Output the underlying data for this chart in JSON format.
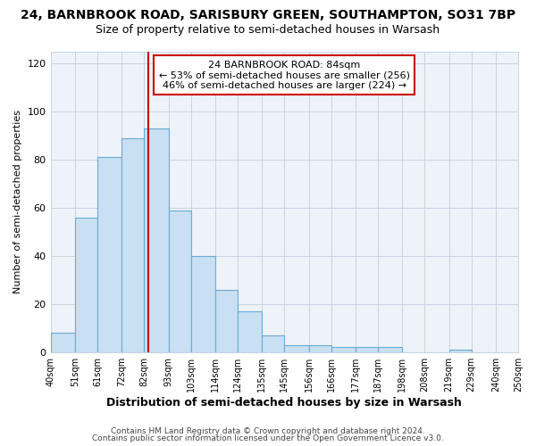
{
  "title1": "24, BARNBROOK ROAD, SARISBURY GREEN, SOUTHAMPTON, SO31 7BP",
  "title2": "Size of property relative to semi-detached houses in Warsash",
  "xlabel": "Distribution of semi-detached houses by size in Warsash",
  "ylabel": "Number of semi-detached properties",
  "bin_labels": [
    "40sqm",
    "51sqm",
    "61sqm",
    "72sqm",
    "82sqm",
    "93sqm",
    "103sqm",
    "114sqm",
    "124sqm",
    "135sqm",
    "145sqm",
    "156sqm",
    "166sqm",
    "177sqm",
    "187sqm",
    "198sqm",
    "208sqm",
    "219sqm",
    "229sqm",
    "240sqm",
    "250sqm"
  ],
  "bin_edges": [
    40,
    51,
    61,
    72,
    82,
    93,
    103,
    114,
    124,
    135,
    145,
    156,
    166,
    177,
    187,
    198,
    208,
    219,
    229,
    240,
    250
  ],
  "counts": [
    8,
    56,
    81,
    89,
    93,
    59,
    40,
    26,
    17,
    7,
    3,
    3,
    2,
    2,
    2,
    0,
    0,
    1,
    0,
    0
  ],
  "property_value": 84,
  "annotation_title": "24 BARNBROOK ROAD: 84sqm",
  "annotation_line1": "← 53% of semi-detached houses are smaller (256)",
  "annotation_line2": "46% of semi-detached houses are larger (224) →",
  "bar_color": "#c9dff2",
  "bar_edge_color": "#6aaad4",
  "vline_color": "#cc0000",
  "annotation_box_edge_color": "#cc0000",
  "plot_bg_color": "#eef3f9",
  "ylim": [
    0,
    125
  ],
  "yticks": [
    0,
    20,
    40,
    60,
    80,
    100,
    120
  ],
  "grid_color": "#c8d4e4",
  "footer1": "Contains HM Land Registry data © Crown copyright and database right 2024.",
  "footer2": "Contains public sector information licensed under the Open Government Licence v3.0.",
  "title1_fontsize": 10,
  "title2_fontsize": 9,
  "xlabel_fontsize": 9,
  "ylabel_fontsize": 8,
  "annotation_fontsize": 8,
  "footer_fontsize": 6.5
}
